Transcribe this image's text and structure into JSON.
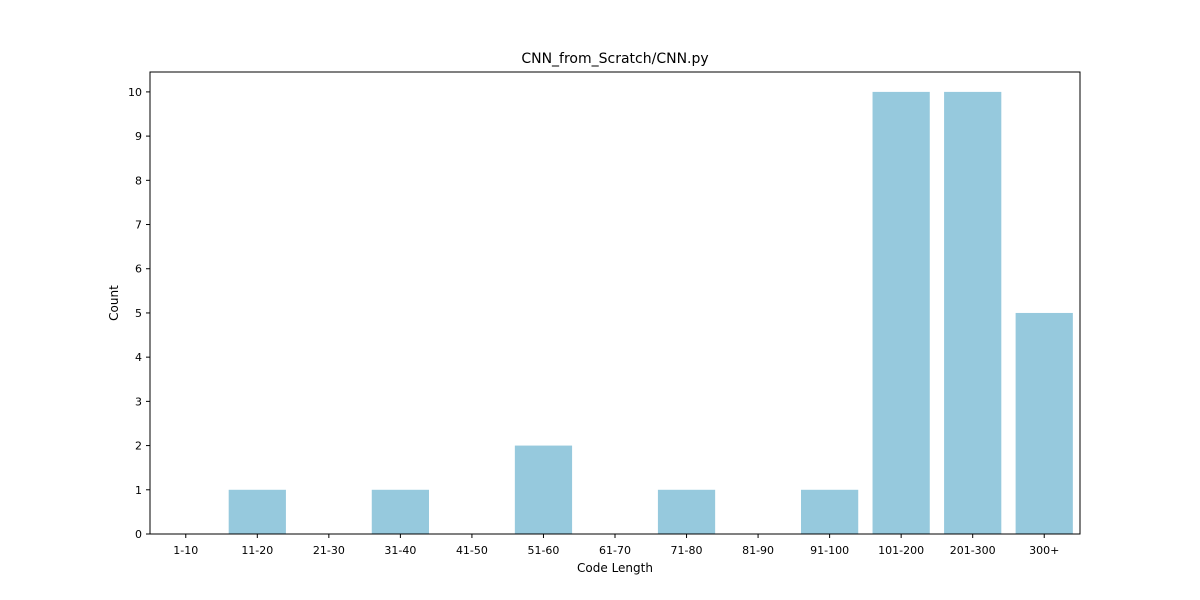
{
  "chart_data": {
    "type": "bar",
    "title": "CNN_from_Scratch/CNN.py",
    "xlabel": "Code Length",
    "ylabel": "Count",
    "categories": [
      "1-10",
      "11-20",
      "21-30",
      "31-40",
      "41-50",
      "51-60",
      "61-70",
      "71-80",
      "81-90",
      "91-100",
      "101-200",
      "201-300",
      "300+"
    ],
    "values": [
      0,
      1,
      0,
      1,
      0,
      2,
      0,
      1,
      0,
      1,
      10,
      10,
      5
    ],
    "ylim": [
      0,
      10.45
    ],
    "yticks": [
      0,
      1,
      2,
      3,
      4,
      5,
      6,
      7,
      8,
      9,
      10
    ],
    "grid": false,
    "legend": "none",
    "bar_color": "#96c9dd"
  }
}
